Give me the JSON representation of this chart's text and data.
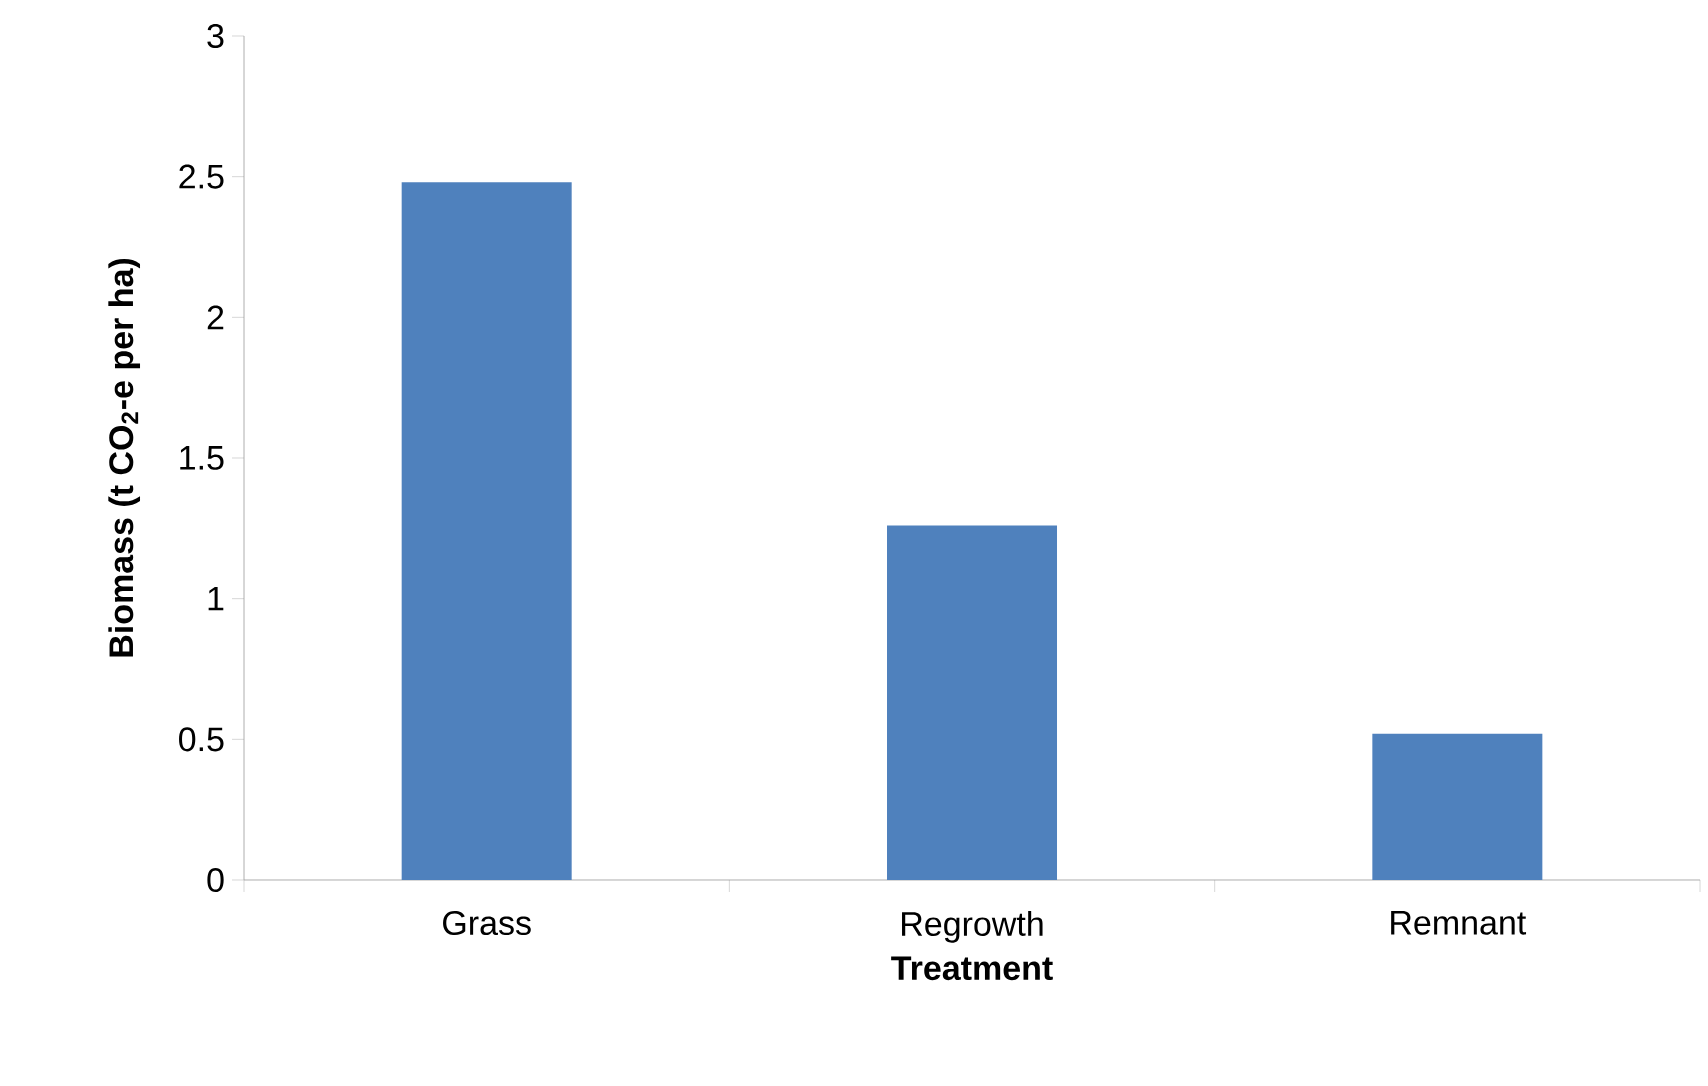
{
  "chart_data": {
    "type": "bar",
    "xlabel": "Treatment",
    "ylabel": "Biomass (t CO$_{2}$-e per ha)",
    "categories": [
      "Grass",
      "Regrowth",
      "Remnant"
    ],
    "values": [
      2.48,
      1.26,
      0.52
    ],
    "color": "#4f81bd",
    "ylim": [
      0,
      3
    ],
    "yticks": [
      0,
      0.5,
      1,
      1.5,
      2,
      2.5,
      3
    ],
    "grid": false
  }
}
